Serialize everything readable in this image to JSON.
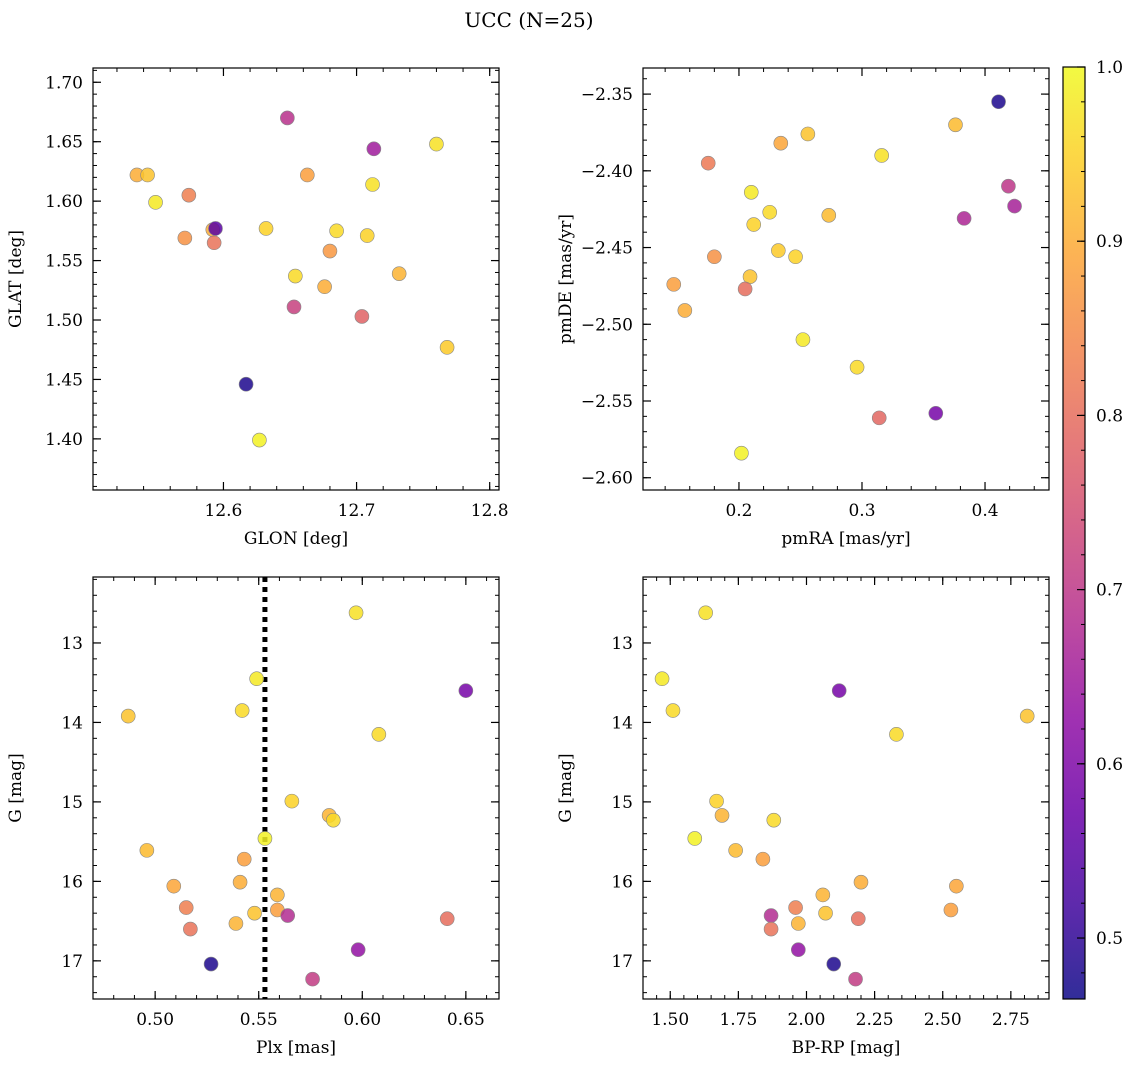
{
  "title": "UCC (N=25)",
  "colormap": "plasma",
  "colorbar": {
    "min": 0.465,
    "max": 1.0,
    "ticks": [
      "0.5",
      "0.6",
      "0.7",
      "0.8",
      "0.9",
      "1.0"
    ]
  },
  "chart_data": [
    {
      "type": "scatter",
      "xlabel": "GLON [deg]",
      "ylabel": "GLAT [deg]",
      "xlim": [
        12.502,
        12.807
      ],
      "ylim": [
        1.357,
        1.712
      ],
      "xticks": [
        "12.6",
        "12.7",
        "12.8"
      ],
      "yticks": [
        "1.40",
        "1.45",
        "1.50",
        "1.55",
        "1.60",
        "1.65",
        "1.70"
      ],
      "points": [
        {
          "x": 12.535,
          "y": 1.622,
          "c": 0.9
        },
        {
          "x": 12.543,
          "y": 1.622,
          "c": 0.93
        },
        {
          "x": 12.549,
          "y": 1.599,
          "c": 0.98
        },
        {
          "x": 12.574,
          "y": 1.605,
          "c": 0.83
        },
        {
          "x": 12.571,
          "y": 1.569,
          "c": 0.86
        },
        {
          "x": 12.592,
          "y": 1.576,
          "c": 0.9
        },
        {
          "x": 12.594,
          "y": 1.577,
          "c": 0.55
        },
        {
          "x": 12.593,
          "y": 1.565,
          "c": 0.81
        },
        {
          "x": 12.648,
          "y": 1.67,
          "c": 0.69
        },
        {
          "x": 12.617,
          "y": 1.446,
          "c": 0.48
        },
        {
          "x": 12.632,
          "y": 1.577,
          "c": 0.95
        },
        {
          "x": 12.627,
          "y": 1.399,
          "c": 0.99
        },
        {
          "x": 12.654,
          "y": 1.537,
          "c": 0.96
        },
        {
          "x": 12.653,
          "y": 1.511,
          "c": 0.72
        },
        {
          "x": 12.663,
          "y": 1.622,
          "c": 0.88
        },
        {
          "x": 12.68,
          "y": 1.558,
          "c": 0.87
        },
        {
          "x": 12.685,
          "y": 1.575,
          "c": 0.96
        },
        {
          "x": 12.676,
          "y": 1.528,
          "c": 0.9
        },
        {
          "x": 12.704,
          "y": 1.503,
          "c": 0.78
        },
        {
          "x": 12.708,
          "y": 1.571,
          "c": 0.95
        },
        {
          "x": 12.713,
          "y": 1.644,
          "c": 0.65
        },
        {
          "x": 12.712,
          "y": 1.614,
          "c": 0.97
        },
        {
          "x": 12.732,
          "y": 1.539,
          "c": 0.91
        },
        {
          "x": 12.76,
          "y": 1.648,
          "c": 0.97
        },
        {
          "x": 12.768,
          "y": 1.477,
          "c": 0.94
        }
      ]
    },
    {
      "type": "scatter",
      "xlabel": "pmRA [mas/yr]",
      "ylabel": "pmDE [mas/yr]",
      "xlim": [
        0.122,
        0.452
      ],
      "ylim": [
        -2.608,
        -2.333
      ],
      "xticks": [
        "0.2",
        "0.3",
        "0.4"
      ],
      "yticks": [
        "−2.60",
        "−2.55",
        "−2.50",
        "−2.45",
        "−2.40",
        "−2.35"
      ],
      "points": [
        {
          "x": 0.411,
          "y": -2.355,
          "c": 0.48
        },
        {
          "x": 0.376,
          "y": -2.37,
          "c": 0.92
        },
        {
          "x": 0.256,
          "y": -2.376,
          "c": 0.93
        },
        {
          "x": 0.234,
          "y": -2.382,
          "c": 0.89
        },
        {
          "x": 0.316,
          "y": -2.39,
          "c": 0.97
        },
        {
          "x": 0.175,
          "y": -2.395,
          "c": 0.82
        },
        {
          "x": 0.419,
          "y": -2.41,
          "c": 0.7
        },
        {
          "x": 0.424,
          "y": -2.423,
          "c": 0.66
        },
        {
          "x": 0.21,
          "y": -2.414,
          "c": 0.98
        },
        {
          "x": 0.383,
          "y": -2.431,
          "c": 0.67
        },
        {
          "x": 0.225,
          "y": -2.427,
          "c": 0.96
        },
        {
          "x": 0.273,
          "y": -2.429,
          "c": 0.92
        },
        {
          "x": 0.212,
          "y": -2.435,
          "c": 0.95
        },
        {
          "x": 0.232,
          "y": -2.452,
          "c": 0.94
        },
        {
          "x": 0.246,
          "y": -2.456,
          "c": 0.95
        },
        {
          "x": 0.18,
          "y": -2.456,
          "c": 0.86
        },
        {
          "x": 0.209,
          "y": -2.469,
          "c": 0.93
        },
        {
          "x": 0.147,
          "y": -2.474,
          "c": 0.88
        },
        {
          "x": 0.205,
          "y": -2.477,
          "c": 0.8
        },
        {
          "x": 0.156,
          "y": -2.491,
          "c": 0.9
        },
        {
          "x": 0.252,
          "y": -2.51,
          "c": 0.98
        },
        {
          "x": 0.296,
          "y": -2.528,
          "c": 0.96
        },
        {
          "x": 0.314,
          "y": -2.561,
          "c": 0.79
        },
        {
          "x": 0.36,
          "y": -2.558,
          "c": 0.59
        },
        {
          "x": 0.202,
          "y": -2.584,
          "c": 0.99
        }
      ]
    },
    {
      "type": "scatter",
      "xlabel": "Plx [mas]",
      "ylabel": "G [mag]",
      "xlim": [
        0.47,
        0.666
      ],
      "ylim": [
        17.48,
        12.17
      ],
      "y_inverted": true,
      "vline": 0.553,
      "xticks": [
        "0.50",
        "0.55",
        "0.60",
        "0.65"
      ],
      "yticks": [
        "13",
        "14",
        "15",
        "16",
        "17"
      ],
      "points": [
        {
          "x": 0.597,
          "y": 12.62,
          "c": 0.97
        },
        {
          "x": 0.549,
          "y": 13.45,
          "c": 0.98
        },
        {
          "x": 0.65,
          "y": 13.6,
          "c": 0.59
        },
        {
          "x": 0.542,
          "y": 13.85,
          "c": 0.96
        },
        {
          "x": 0.487,
          "y": 13.92,
          "c": 0.93
        },
        {
          "x": 0.608,
          "y": 14.15,
          "c": 0.96
        },
        {
          "x": 0.566,
          "y": 14.99,
          "c": 0.95
        },
        {
          "x": 0.584,
          "y": 15.17,
          "c": 0.91
        },
        {
          "x": 0.586,
          "y": 15.23,
          "c": 0.96
        },
        {
          "x": 0.553,
          "y": 15.46,
          "c": 0.99
        },
        {
          "x": 0.496,
          "y": 15.61,
          "c": 0.92
        },
        {
          "x": 0.543,
          "y": 15.72,
          "c": 0.88
        },
        {
          "x": 0.541,
          "y": 16.01,
          "c": 0.9
        },
        {
          "x": 0.509,
          "y": 16.06,
          "c": 0.89
        },
        {
          "x": 0.559,
          "y": 16.17,
          "c": 0.91
        },
        {
          "x": 0.515,
          "y": 16.33,
          "c": 0.83
        },
        {
          "x": 0.559,
          "y": 16.36,
          "c": 0.88
        },
        {
          "x": 0.548,
          "y": 16.4,
          "c": 0.93
        },
        {
          "x": 0.564,
          "y": 16.43,
          "c": 0.68
        },
        {
          "x": 0.641,
          "y": 16.47,
          "c": 0.8
        },
        {
          "x": 0.539,
          "y": 16.53,
          "c": 0.91
        },
        {
          "x": 0.517,
          "y": 16.6,
          "c": 0.81
        },
        {
          "x": 0.598,
          "y": 16.86,
          "c": 0.63
        },
        {
          "x": 0.527,
          "y": 17.04,
          "c": 0.48
        },
        {
          "x": 0.576,
          "y": 17.23,
          "c": 0.71
        }
      ]
    },
    {
      "type": "scatter",
      "xlabel": "BP-RP [mag]",
      "ylabel": "G [mag]",
      "xlim": [
        1.4,
        2.89
      ],
      "ylim": [
        17.48,
        12.17
      ],
      "y_inverted": true,
      "xticks": [
        "1.50",
        "1.75",
        "2.00",
        "2.25",
        "2.50",
        "2.75"
      ],
      "yticks": [
        "13",
        "14",
        "15",
        "16",
        "17"
      ],
      "points": [
        {
          "x": 1.63,
          "y": 12.62,
          "c": 0.97
        },
        {
          "x": 1.47,
          "y": 13.45,
          "c": 0.98
        },
        {
          "x": 2.12,
          "y": 13.6,
          "c": 0.59
        },
        {
          "x": 1.51,
          "y": 13.85,
          "c": 0.96
        },
        {
          "x": 2.81,
          "y": 13.92,
          "c": 0.93
        },
        {
          "x": 2.33,
          "y": 14.15,
          "c": 0.96
        },
        {
          "x": 1.67,
          "y": 14.99,
          "c": 0.95
        },
        {
          "x": 1.69,
          "y": 15.17,
          "c": 0.91
        },
        {
          "x": 1.88,
          "y": 15.23,
          "c": 0.96
        },
        {
          "x": 1.59,
          "y": 15.46,
          "c": 0.99
        },
        {
          "x": 1.74,
          "y": 15.61,
          "c": 0.92
        },
        {
          "x": 1.84,
          "y": 15.72,
          "c": 0.88
        },
        {
          "x": 2.2,
          "y": 16.01,
          "c": 0.9
        },
        {
          "x": 2.55,
          "y": 16.06,
          "c": 0.89
        },
        {
          "x": 2.06,
          "y": 16.17,
          "c": 0.91
        },
        {
          "x": 1.96,
          "y": 16.33,
          "c": 0.83
        },
        {
          "x": 2.53,
          "y": 16.36,
          "c": 0.88
        },
        {
          "x": 2.07,
          "y": 16.4,
          "c": 0.93
        },
        {
          "x": 1.87,
          "y": 16.43,
          "c": 0.68
        },
        {
          "x": 2.19,
          "y": 16.47,
          "c": 0.8
        },
        {
          "x": 1.97,
          "y": 16.53,
          "c": 0.91
        },
        {
          "x": 1.87,
          "y": 16.6,
          "c": 0.81
        },
        {
          "x": 1.97,
          "y": 16.86,
          "c": 0.63
        },
        {
          "x": 2.1,
          "y": 17.04,
          "c": 0.48
        },
        {
          "x": 2.18,
          "y": 17.23,
          "c": 0.71
        }
      ]
    }
  ]
}
